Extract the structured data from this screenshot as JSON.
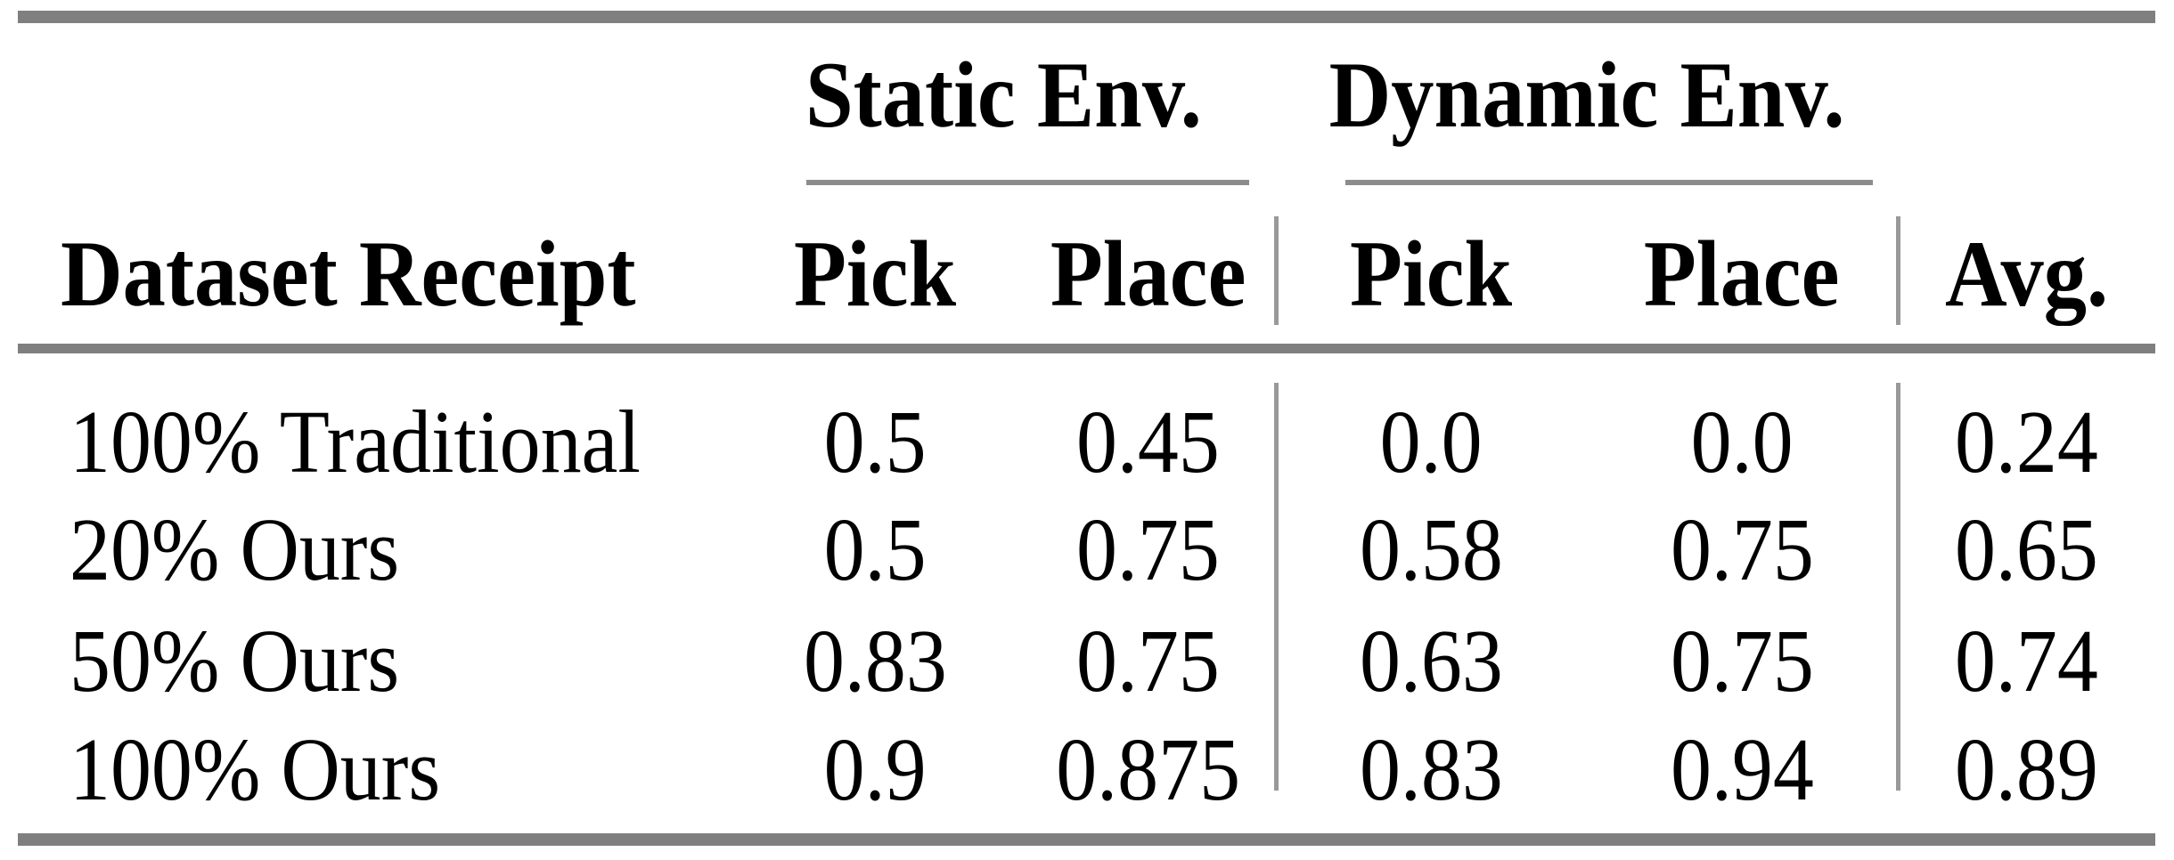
{
  "table": {
    "column_groups": [
      {
        "label": "Static Env.",
        "columns": [
          "Pick",
          "Place"
        ]
      },
      {
        "label": "Dynamic Env.",
        "columns": [
          "Pick",
          "Place"
        ]
      }
    ],
    "headers": [
      "Dataset Receipt",
      "Pick",
      "Place",
      "Pick",
      "Place",
      "Avg."
    ],
    "rows": [
      {
        "label": "100% Traditional",
        "values": [
          "0.5",
          "0.45",
          "0.0",
          "0.0",
          "0.24"
        ]
      },
      {
        "label": "20% Ours",
        "values": [
          "0.5",
          "0.75",
          "0.58",
          "0.75",
          "0.65"
        ]
      },
      {
        "label": "50% Ours",
        "values": [
          "0.83",
          "0.75",
          "0.63",
          "0.75",
          "0.74"
        ]
      },
      {
        "label": "100% Ours",
        "values": [
          "0.9",
          "0.875",
          "0.83",
          "0.94",
          "0.89"
        ]
      }
    ]
  },
  "colors": {
    "thick_rule": "#7f7f7f",
    "thin_rule": "#8c8c8c",
    "column_divider": "#999999",
    "text": "#000000",
    "background": "#ffffff"
  },
  "chart_data": {
    "type": "table",
    "column_groups": [
      "Static Env.",
      "Dynamic Env."
    ],
    "columns": [
      "Dataset Receipt",
      "Static Env. Pick",
      "Static Env. Place",
      "Dynamic Env. Pick",
      "Dynamic Env. Place",
      "Avg."
    ],
    "rows": [
      [
        "100% Traditional",
        0.5,
        0.45,
        0.0,
        0.0,
        0.24
      ],
      [
        "20% Ours",
        0.5,
        0.75,
        0.58,
        0.75,
        0.65
      ],
      [
        "50% Ours",
        0.83,
        0.75,
        0.63,
        0.75,
        0.74
      ],
      [
        "100% Ours",
        0.9,
        0.875,
        0.83,
        0.94,
        0.89
      ]
    ]
  }
}
